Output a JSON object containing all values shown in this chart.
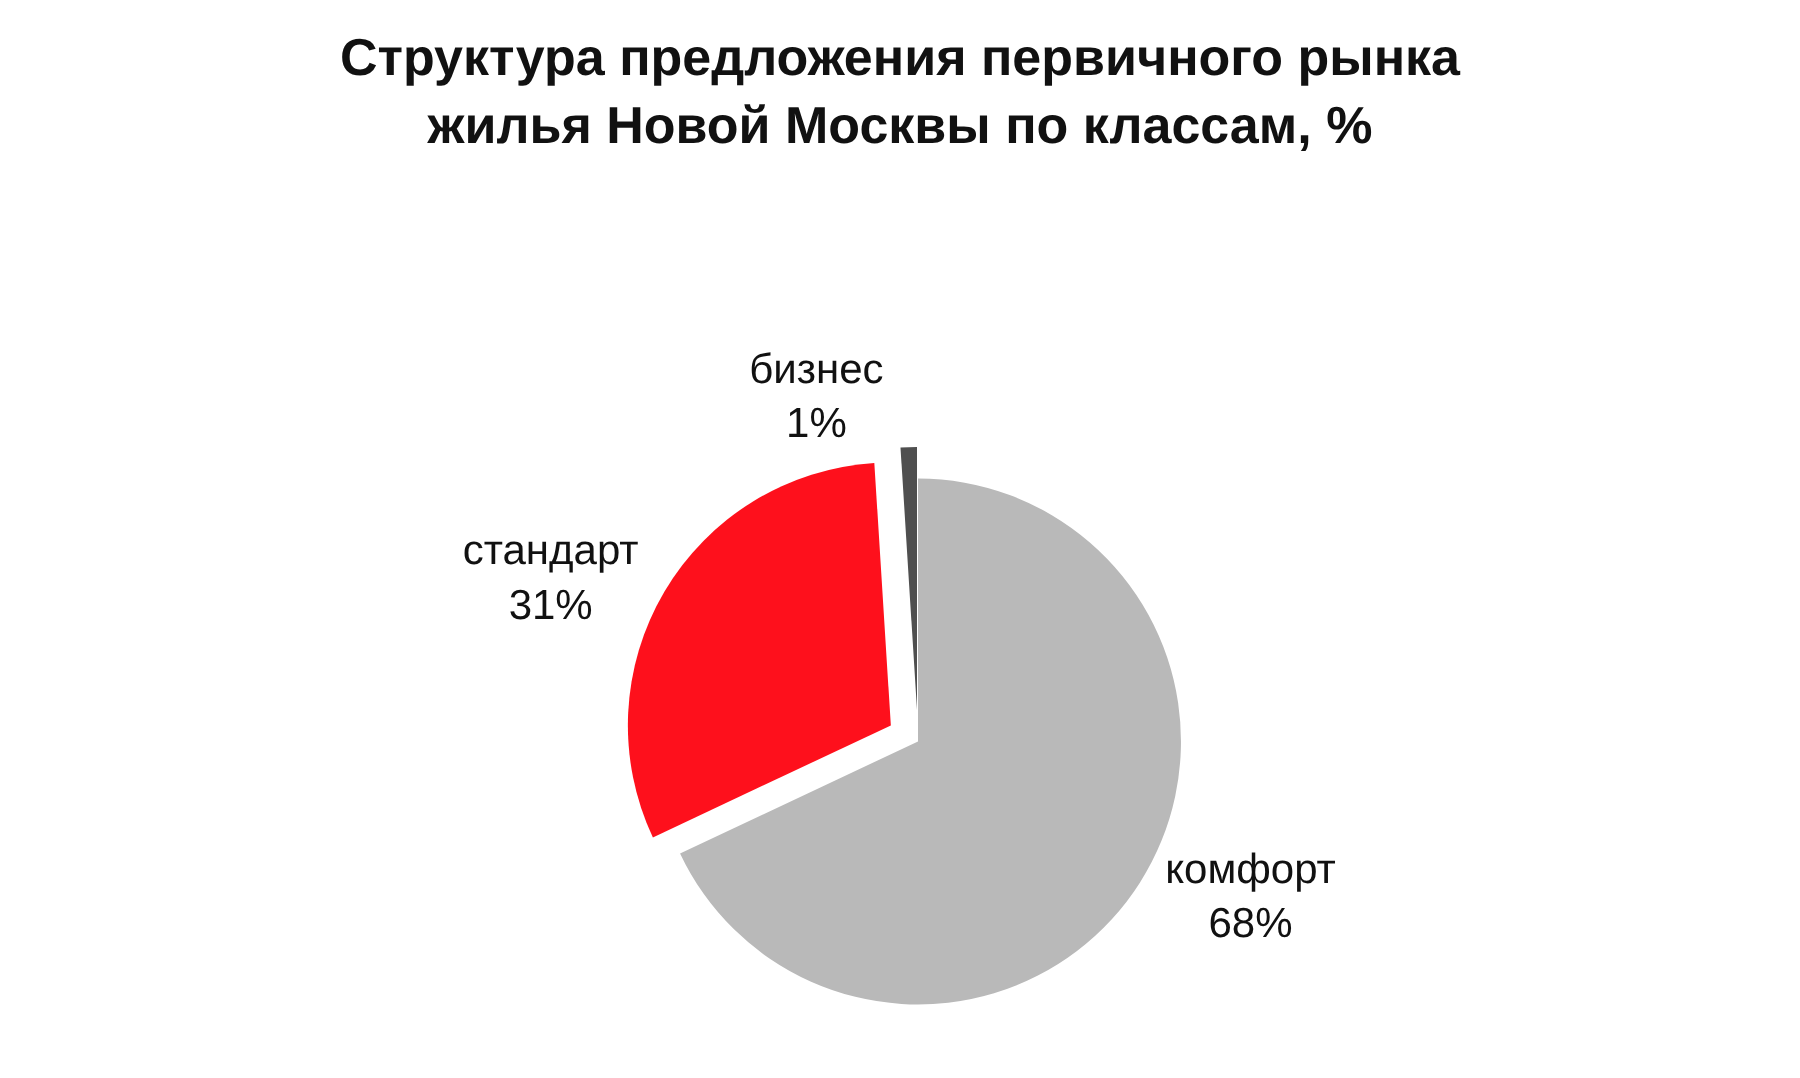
{
  "chart_data": {
    "type": "pie",
    "title": "Структура предложения первичного рынка\nжилья Новой Москвы по классам, %",
    "categories": [
      "комфорт",
      "стандарт",
      "бизнес"
    ],
    "values": [
      68,
      31,
      1
    ],
    "value_labels": [
      "68%",
      "31%",
      "1%"
    ],
    "colors": [
      "#b9b9b9",
      "#fe101c",
      "#4f4f4f"
    ],
    "legend": false
  }
}
